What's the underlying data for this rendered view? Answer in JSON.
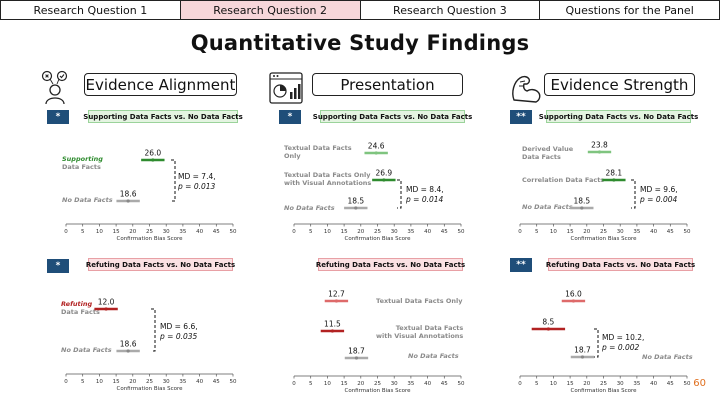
{
  "tabs": [
    {
      "label": "Research Question 1",
      "active": false
    },
    {
      "label": "Research Question 2",
      "active": true
    },
    {
      "label": "Research Question 3",
      "active": false
    },
    {
      "label": "Questions for the Panel",
      "active": false
    }
  ],
  "title": "Quantitative Study Findings",
  "sections": [
    {
      "label": "Evidence Alignment",
      "icon": "people-check-cross-icon"
    },
    {
      "label": "Presentation",
      "icon": "dashboard-chart-icon"
    },
    {
      "label": "Evidence Strength",
      "icon": "flexed-arm-icon"
    }
  ],
  "colors": {
    "supporting": "#2e8b2e",
    "refuting": "#b22222",
    "baseline": "#aaaaaa",
    "star_badge": "#1f4e79"
  },
  "chart_data": [
    {
      "type": "dot-range",
      "comparison": "Supporting Data Facts vs. No Data Facts",
      "significance": "*",
      "xlabel": "Confirmation Bias Score",
      "xticks": [
        0,
        5,
        10,
        15,
        20,
        25,
        30,
        35,
        40,
        45,
        50
      ],
      "xlim": [
        0,
        50
      ],
      "conditions": [
        {
          "label_highlight": "Supporting",
          "label_rest": "Data Facts",
          "value": 26.0,
          "value_text": "26.0",
          "err": 3.5,
          "color": "supporting"
        },
        {
          "label_highlight": "",
          "label_rest": "No Data Facts",
          "value": 18.6,
          "value_text": "18.6",
          "err": 3.5,
          "color": "baseline"
        }
      ],
      "annotation": {
        "md": "MD = 7.4,",
        "p": "p = 0.013"
      }
    },
    {
      "type": "dot-range",
      "comparison": "Supporting Data Facts vs. No Data Facts",
      "significance": "*",
      "xlabel": "Confirmation Bias Score",
      "xticks": [
        0,
        5,
        10,
        15,
        20,
        25,
        30,
        35,
        40,
        45,
        50
      ],
      "xlim": [
        0,
        50
      ],
      "conditions": [
        {
          "label_lines": [
            "Textual Data Facts",
            "Only"
          ],
          "value": 24.6,
          "value_text": "24.6",
          "err": 3.5,
          "color": "light-supporting"
        },
        {
          "label_lines": [
            "Textual Data Facts Only",
            "with Visual Annotations"
          ],
          "value": 26.9,
          "value_text": "26.9",
          "err": 3.5,
          "color": "supporting"
        },
        {
          "label_lines": [
            "No Data Facts"
          ],
          "value": 18.5,
          "value_text": "18.5",
          "err": 3.5,
          "color": "baseline"
        }
      ],
      "annotation": {
        "md": "MD = 8.4,",
        "p": "p = 0.014"
      }
    },
    {
      "type": "dot-range",
      "comparison": "Supporting Data Facts vs. No Data Facts",
      "significance": "**",
      "xlabel": "Confirmation Bias Score",
      "xticks": [
        0,
        5,
        10,
        15,
        20,
        25,
        30,
        35,
        40,
        45,
        50
      ],
      "xlim": [
        0,
        50
      ],
      "conditions": [
        {
          "label_lines": [
            "Derived Value",
            "Data Facts"
          ],
          "value": 23.8,
          "value_text": "23.8",
          "err": 3.5,
          "color": "light-supporting"
        },
        {
          "label_lines": [
            "Correlation Data Facts"
          ],
          "value": 28.1,
          "value_text": "28.1",
          "err": 3.5,
          "color": "supporting"
        },
        {
          "label_lines": [
            "No Data Facts"
          ],
          "value": 18.5,
          "value_text": "18.5",
          "err": 3.5,
          "color": "baseline"
        }
      ],
      "annotation": {
        "md": "MD = 9.6,",
        "p": "p = 0.004"
      }
    },
    {
      "type": "dot-range",
      "comparison": "Refuting Data Facts vs. No Data Facts",
      "significance": "*",
      "xlabel": "Confirmation Bias Score",
      "xticks": [
        0,
        5,
        10,
        15,
        20,
        25,
        30,
        35,
        40,
        45,
        50
      ],
      "xlim": [
        0,
        50
      ],
      "conditions": [
        {
          "label_highlight": "Refuting",
          "label_rest": "Data Facts",
          "value": 12.0,
          "value_text": "12.0",
          "err": 3.5,
          "color": "refuting"
        },
        {
          "label_highlight": "",
          "label_rest": "No Data Facts",
          "value": 18.6,
          "value_text": "18.6",
          "err": 3.5,
          "color": "baseline"
        }
      ],
      "annotation": {
        "md": "MD = 6.6,",
        "p": "p = 0.035"
      }
    },
    {
      "type": "dot-range",
      "comparison": "Refuting Data Facts vs. No Data Facts",
      "significance": "",
      "xlabel": "Confirmation Bias Score",
      "xticks": [
        0,
        5,
        10,
        15,
        20,
        25,
        30,
        35,
        40,
        45,
        50
      ],
      "xlim": [
        0,
        50
      ],
      "conditions": [
        {
          "label_lines": [
            "Textual Data Facts Only"
          ],
          "value": 12.7,
          "value_text": "12.7",
          "err": 3.5,
          "color": "light-refuting"
        },
        {
          "label_lines": [
            "Textual Data Facts",
            "with Visual Annotations"
          ],
          "value": 11.5,
          "value_text": "11.5",
          "err": 3.5,
          "color": "refuting"
        },
        {
          "label_lines": [
            "No Data Facts"
          ],
          "value": 18.7,
          "value_text": "18.7",
          "err": 3.5,
          "color": "baseline"
        }
      ],
      "annotation": null
    },
    {
      "type": "dot-range",
      "comparison": "Refuting Data Facts vs. No Data Facts",
      "significance": "**",
      "xlabel": "Confirmation Bias Score",
      "xticks": [
        0,
        5,
        10,
        15,
        20,
        25,
        30,
        35,
        40,
        45,
        50
      ],
      "xlim": [
        0,
        50
      ],
      "conditions": [
        {
          "label_lines": [],
          "value": 16.0,
          "value_text": "16.0",
          "err": 3.5,
          "color": "light-refuting"
        },
        {
          "label_lines": [],
          "value": 8.5,
          "value_text": "8.5",
          "err": 5.0,
          "color": "refuting"
        },
        {
          "label_lines": [
            "No Data Facts"
          ],
          "value": 18.7,
          "value_text": "18.7",
          "err": 3.5,
          "color": "baseline"
        }
      ],
      "annotation": {
        "md": "MD = 10.2,",
        "p": "p = 0.002"
      }
    }
  ],
  "page_number": "60"
}
